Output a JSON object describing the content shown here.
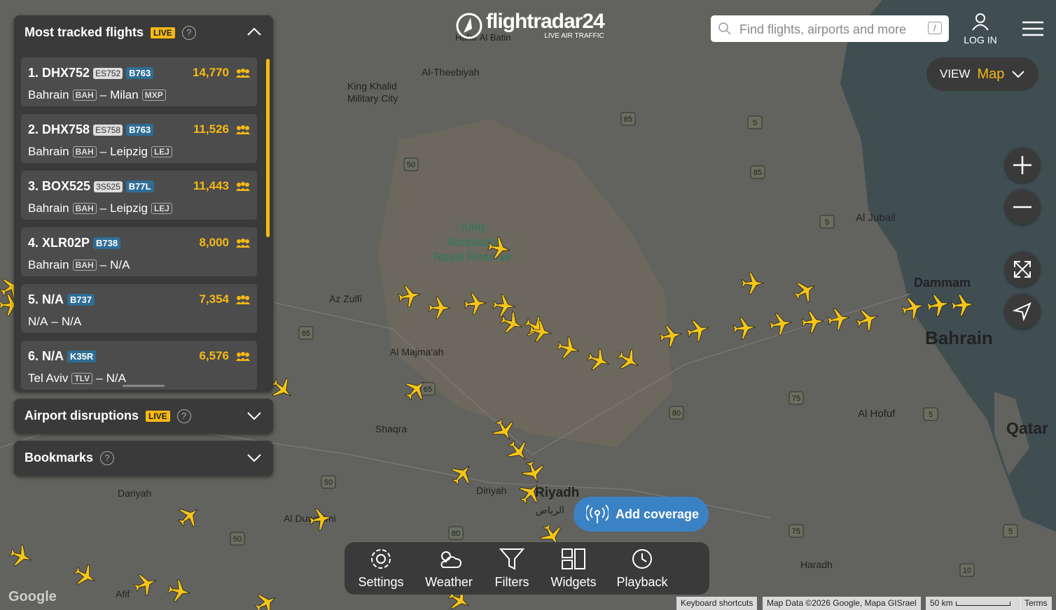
{
  "header": {
    "logo": "flightradar24",
    "tagline": "LIVE AIR TRAFFIC",
    "search_placeholder": "Find flights, airports and more",
    "search_key": "/",
    "login": "LOG IN"
  },
  "view": {
    "label": "VIEW",
    "value": "Map"
  },
  "panel": {
    "title": "Most tracked flights",
    "badge": "LIVE",
    "separator": "–",
    "flights": [
      {
        "rank": "1.",
        "callsign": "DHX752",
        "code": "ES752",
        "aircraft": "B763",
        "count": "14,770",
        "from": "Bahrain",
        "from_code": "BAH",
        "to": "Milan",
        "to_code": "MXP"
      },
      {
        "rank": "2.",
        "callsign": "DHX758",
        "code": "ES758",
        "aircraft": "B763",
        "count": "11,526",
        "from": "Bahrain",
        "from_code": "BAH",
        "to": "Leipzig",
        "to_code": "LEJ"
      },
      {
        "rank": "3.",
        "callsign": "BOX525",
        "code": "3S525",
        "aircraft": "B77L",
        "count": "11,443",
        "from": "Bahrain",
        "from_code": "BAH",
        "to": "Leipzig",
        "to_code": "LEJ"
      },
      {
        "rank": "4.",
        "callsign": "XLR02P",
        "aircraft": "B738",
        "count": "8,000",
        "from": "Bahrain",
        "from_code": "BAH",
        "to": "N/A"
      },
      {
        "rank": "5.",
        "callsign": "N/A",
        "aircraft": "B737",
        "count": "7,354",
        "from": "N/A",
        "to": "N/A"
      },
      {
        "rank": "6.",
        "callsign": "N/A",
        "aircraft": "K35R",
        "count": "6,576",
        "from": "Tel Aviv",
        "from_code": "TLV",
        "to": "N/A"
      }
    ]
  },
  "sections": [
    {
      "title": "Airport disruptions",
      "badge": "LIVE"
    },
    {
      "title": "Bookmarks"
    }
  ],
  "toolbar": [
    "Settings",
    "Weather",
    "Filters",
    "Widgets",
    "Playback"
  ],
  "add_coverage": "Add coverage",
  "map": {
    "labels": [
      "Hafar Al Batin",
      "Al-Theebiyah",
      "King Khalid Military City",
      "King Abdulaziz Royal Reserve",
      "Az Zulfi",
      "Al Majma'ah",
      "Shaqra",
      "Riyadh",
      "الرياض",
      "Diriyah",
      "Dariyah",
      "Al Duwadmi",
      "Afif",
      "Al Jubail",
      "Dammam",
      "Bahrain",
      "Al Hofuf",
      "Qatar",
      "Haradh"
    ],
    "roads": [
      "85",
      "5",
      "50",
      "85",
      "5",
      "65",
      "65",
      "75",
      "80",
      "50",
      "50",
      "80",
      "75",
      "5",
      "10",
      "5"
    ]
  },
  "footer": {
    "google": "Google",
    "shortcuts": "Keyboard shortcuts",
    "map_data": "Map Data ©2026 Google, Mapa GISrael",
    "scale": "50 km",
    "terms": "Terms"
  }
}
